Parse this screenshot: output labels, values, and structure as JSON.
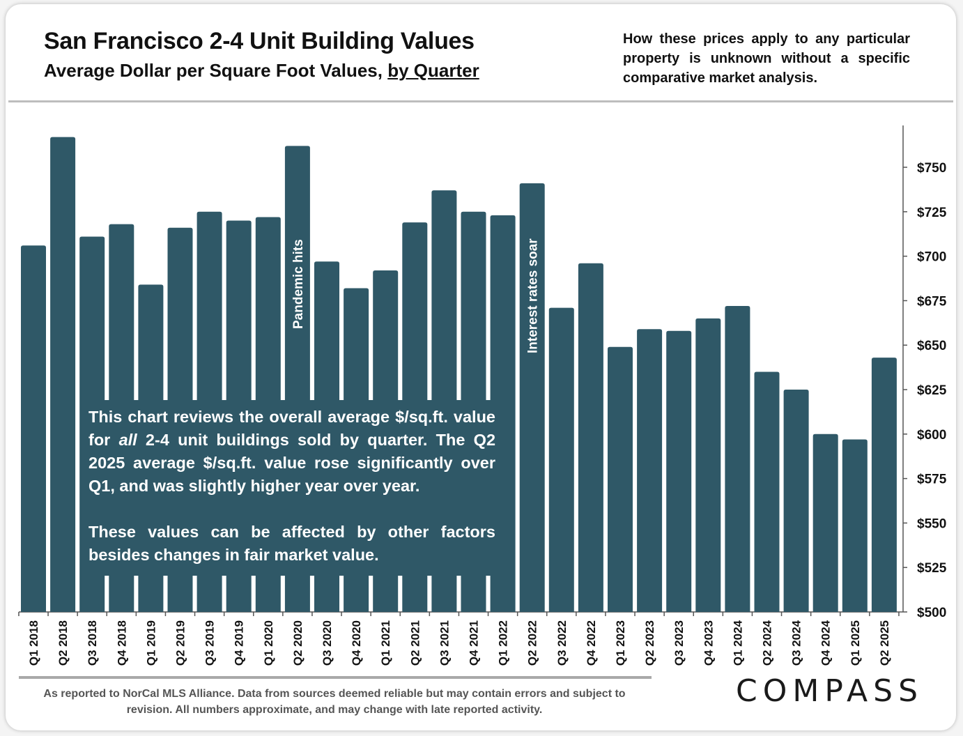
{
  "header": {
    "title": "San Francisco 2-4 Unit Building Values",
    "subtitle_prefix": "Average Dollar per Square Foot Values, ",
    "subtitle_link": "by Quarter",
    "disclaimer": "How these prices apply to any particular property is unknown without a specific comparative market analysis."
  },
  "note": {
    "p1_before": "This chart reviews the overall average $/sq.ft. value for ",
    "p1_em": "all",
    "p1_after": " 2-4 unit buildings sold by quarter. The Q2 2025 average $/sq.ft. value rose significantly over Q1, and was slightly higher year over year.",
    "p2": "These values can be affected by other factors besides changes in fair market value."
  },
  "footer": {
    "text": "As reported to NorCal MLS Alliance. Data from sources deemed reliable but may contain errors and subject to revision. All numbers approximate, and may change with late reported activity.",
    "logo": "COMPASS"
  },
  "chart_data": {
    "type": "bar",
    "title": "San Francisco 2-4 Unit Building Values",
    "subtitle": "Average Dollar per Square Foot Values, by Quarter",
    "categories": [
      "Q1 2018",
      "Q2 2018",
      "Q3 2018",
      "Q4 2018",
      "Q1 2019",
      "Q2 2019",
      "Q3 2019",
      "Q4 2019",
      "Q1 2020",
      "Q2 2020",
      "Q3 2020",
      "Q4 2020",
      "Q1 2021",
      "Q2 2021",
      "Q3 2021",
      "Q4 2021",
      "Q1 2022",
      "Q2 2022",
      "Q3 2022",
      "Q4 2022",
      "Q1 2023",
      "Q2 2023",
      "Q3 2023",
      "Q4 2023",
      "Q1 2024",
      "Q2 2024",
      "Q3 2024",
      "Q4 2024",
      "Q1 2025",
      "Q2 2025"
    ],
    "values": [
      706,
      767,
      711,
      718,
      684,
      716,
      725,
      720,
      722,
      762,
      697,
      682,
      692,
      719,
      737,
      725,
      723,
      741,
      671,
      696,
      649,
      659,
      658,
      665,
      672,
      635,
      625,
      600,
      597,
      643
    ],
    "ylim": [
      500,
      775
    ],
    "yticks": [
      500,
      525,
      550,
      575,
      600,
      625,
      650,
      675,
      700,
      725,
      750
    ],
    "ytick_labels": [
      "$500",
      "$525",
      "$550",
      "$575",
      "$600",
      "$625",
      "$650",
      "$675",
      "$700",
      "$725",
      "$750"
    ],
    "yaxis_side": "right",
    "annotations": [
      {
        "category": "Q2 2020",
        "text": "Pandemic hits"
      },
      {
        "category": "Q2 2022",
        "text": "Interest rates soar"
      }
    ],
    "colors": {
      "bar": "#2f5867",
      "annotation_text": "#ffffff"
    },
    "grid": false,
    "legend": "none"
  }
}
